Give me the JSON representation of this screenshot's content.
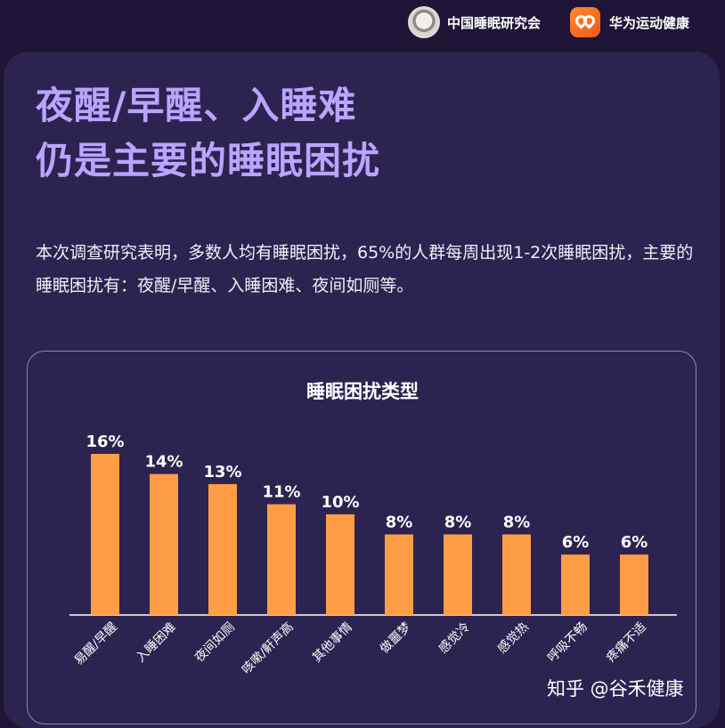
{
  "header": {
    "brand_left": "中国睡眠研究会",
    "brand_right": "华为运动健康"
  },
  "headline": {
    "line1": "夜醒/早醒、入睡难",
    "line2": "仍是主要的睡眠困扰"
  },
  "description": "本次调查研究表明，多数人均有睡眠困扰，65%的人群每周出现1-2次睡眠困扰，主要的睡眠困扰有：夜醒/早醒、入睡困难、夜间如厕等。",
  "watermark": "知乎 @谷禾健康",
  "colors": {
    "bar": "#ff9d47",
    "title": "#b9a4ff",
    "background": "#1f1536",
    "panel": "#2c2350"
  },
  "chart_data": {
    "type": "bar",
    "title": "睡眠困扰类型",
    "categories": [
      "易醒/早醒",
      "入睡困难",
      "夜间如厕",
      "咳嗽/鼾声高",
      "其他事情",
      "做噩梦",
      "感觉冷",
      "感觉热",
      "呼吸不畅",
      "疼痛不适"
    ],
    "values": [
      16,
      14,
      13,
      11,
      10,
      8,
      8,
      8,
      6,
      6
    ],
    "value_labels": [
      "16%",
      "14%",
      "13%",
      "11%",
      "10%",
      "8%",
      "8%",
      "8%",
      "6%",
      "6%"
    ],
    "unit": "%",
    "ylim": [
      0,
      16
    ],
    "grid": false,
    "legend": "none"
  }
}
